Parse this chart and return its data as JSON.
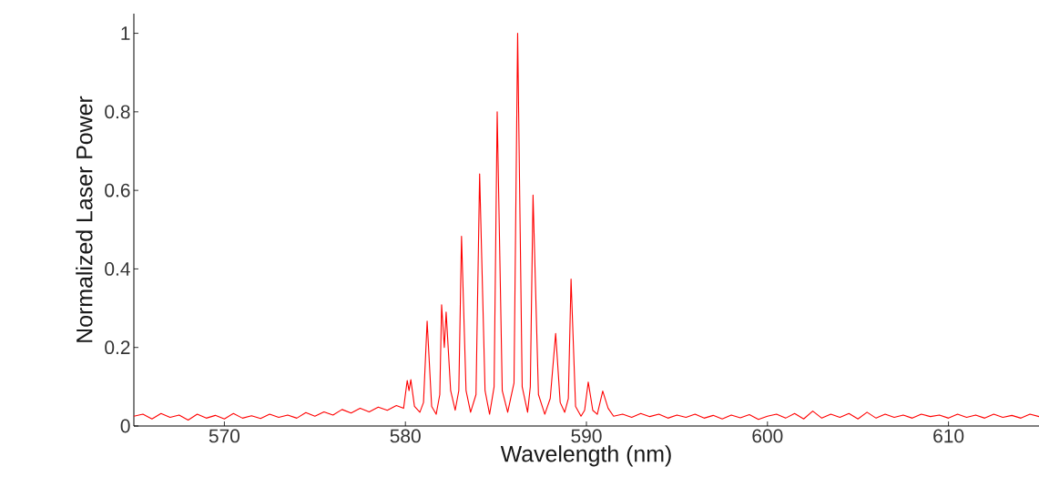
{
  "chart_data": {
    "type": "line",
    "xlabel": "Wavelength (nm)",
    "ylabel": "Normalized Laser Power",
    "xlim": [
      565,
      615
    ],
    "xticks": [
      570,
      580,
      590,
      600,
      610
    ],
    "ylim": [
      0,
      1.05
    ],
    "yticks": [
      0,
      0.2,
      0.4,
      0.6,
      0.8,
      1
    ],
    "series": [
      {
        "color": "#ff0000",
        "x": [
          565,
          565.5,
          566,
          566.5,
          567,
          567.5,
          568,
          568.5,
          569,
          569.5,
          570,
          570.5,
          571,
          571.5,
          572,
          572.5,
          573,
          573.5,
          574,
          574.5,
          575,
          575.5,
          576,
          576.5,
          577,
          577.5,
          578,
          578.5,
          579,
          579.5,
          579.9,
          580.1,
          580.2,
          580.3,
          580.5,
          580.8,
          581.0,
          581.2,
          581.45,
          581.7,
          581.9,
          582.0,
          582.15,
          582.25,
          582.5,
          582.75,
          582.95,
          583.1,
          583.35,
          583.6,
          583.9,
          584.1,
          584.4,
          584.65,
          584.9,
          585.07,
          585.35,
          585.65,
          586.0,
          586.2,
          586.45,
          586.75,
          586.9,
          587.05,
          587.35,
          587.7,
          588.0,
          588.3,
          588.55,
          588.8,
          589.0,
          589.15,
          589.4,
          589.7,
          589.9,
          590.1,
          590.35,
          590.6,
          590.9,
          591.2,
          591.5,
          592,
          592.5,
          593,
          593.5,
          594,
          594.5,
          595,
          595.5,
          596,
          596.5,
          597,
          597.5,
          598,
          598.5,
          599,
          599.5,
          600,
          600.5,
          601,
          601.5,
          602,
          602.5,
          603,
          603.5,
          604,
          604.5,
          605,
          605.5,
          606,
          606.5,
          607,
          607.5,
          608,
          608.5,
          609,
          609.5,
          610,
          610.5,
          611,
          611.5,
          612,
          612.5,
          613,
          613.5,
          614,
          614.5,
          615
        ],
        "values": [
          0.025,
          0.03,
          0.018,
          0.032,
          0.022,
          0.028,
          0.015,
          0.03,
          0.02,
          0.027,
          0.018,
          0.032,
          0.02,
          0.026,
          0.019,
          0.03,
          0.022,
          0.028,
          0.02,
          0.034,
          0.025,
          0.036,
          0.028,
          0.042,
          0.033,
          0.045,
          0.036,
          0.048,
          0.04,
          0.052,
          0.045,
          0.116,
          0.09,
          0.118,
          0.05,
          0.035,
          0.06,
          0.267,
          0.05,
          0.03,
          0.08,
          0.309,
          0.2,
          0.29,
          0.09,
          0.04,
          0.09,
          0.483,
          0.09,
          0.035,
          0.08,
          0.642,
          0.09,
          0.03,
          0.1,
          0.8,
          0.09,
          0.035,
          0.11,
          1.0,
          0.1,
          0.035,
          0.1,
          0.588,
          0.08,
          0.03,
          0.07,
          0.236,
          0.06,
          0.035,
          0.07,
          0.374,
          0.05,
          0.025,
          0.04,
          0.112,
          0.04,
          0.03,
          0.089,
          0.045,
          0.025,
          0.03,
          0.022,
          0.032,
          0.024,
          0.03,
          0.02,
          0.028,
          0.022,
          0.03,
          0.02,
          0.027,
          0.018,
          0.028,
          0.021,
          0.029,
          0.017,
          0.025,
          0.03,
          0.02,
          0.032,
          0.018,
          0.038,
          0.02,
          0.03,
          0.022,
          0.032,
          0.018,
          0.035,
          0.02,
          0.03,
          0.022,
          0.028,
          0.02,
          0.03,
          0.024,
          0.028,
          0.02,
          0.03,
          0.022,
          0.028,
          0.02,
          0.03,
          0.022,
          0.027,
          0.02,
          0.03,
          0.024
        ]
      }
    ]
  }
}
